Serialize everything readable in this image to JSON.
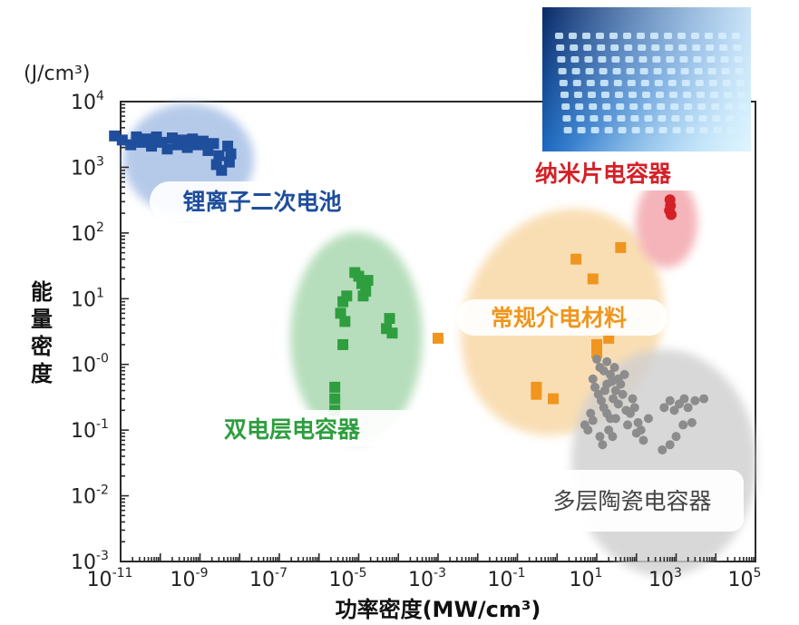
{
  "chart_data": {
    "type": "scatter",
    "title": "",
    "xlabel": "功率密度(MW/cm³)",
    "ylabel": "能量密度",
    "y_unit": "(J/cm³)",
    "x_scale": "log",
    "y_scale": "log",
    "xlim": [
      1e-11,
      100000.0
    ],
    "ylim": [
      0.001,
      10000.0
    ],
    "x_ticks": [
      {
        "base": "10",
        "exp": "-11",
        "value": 1e-11
      },
      {
        "base": "10",
        "exp": "-9",
        "value": 1e-09
      },
      {
        "base": "10",
        "exp": "-7",
        "value": 1e-07
      },
      {
        "base": "10",
        "exp": "-5",
        "value": 1e-05
      },
      {
        "base": "10",
        "exp": "-3",
        "value": 0.001
      },
      {
        "base": "10",
        "exp": "-1",
        "value": 0.1
      },
      {
        "base": "10",
        "exp": "1",
        "value": 10
      },
      {
        "base": "10",
        "exp": "3",
        "value": 1000.0
      },
      {
        "base": "10",
        "exp": "5",
        "value": 100000.0
      }
    ],
    "y_ticks": [
      {
        "base": "10",
        "exp": "4",
        "value": 10000.0
      },
      {
        "base": "10",
        "exp": "3",
        "value": 1000.0
      },
      {
        "base": "10",
        "exp": "2",
        "value": 100.0
      },
      {
        "base": "10",
        "exp": "1",
        "value": 10
      },
      {
        "base": "10",
        "exp": "-0",
        "value": 1
      },
      {
        "base": "10",
        "exp": "-1",
        "value": 0.1
      },
      {
        "base": "10",
        "exp": "-2",
        "value": 0.01
      },
      {
        "base": "10",
        "exp": "-3",
        "value": 0.001
      }
    ],
    "grid": false,
    "legend": "none",
    "series": [
      {
        "name": "锂离子二次电池",
        "color": "#1f4e9c",
        "label_color": "#1f4e9c",
        "region_color": "#a9c1e6",
        "marker": "square",
        "points": [
          [
            7e-12,
            3000
          ],
          [
            1.1e-11,
            2600
          ],
          [
            1.8e-11,
            2200
          ],
          [
            2.5e-11,
            2900
          ],
          [
            3.2e-11,
            2400
          ],
          [
            4.5e-11,
            2700
          ],
          [
            6e-11,
            2100
          ],
          [
            8e-11,
            2900
          ],
          [
            1.1e-10,
            2400
          ],
          [
            1.5e-10,
            1900
          ],
          [
            2e-10,
            2800
          ],
          [
            2.7e-10,
            2200
          ],
          [
            3.5e-10,
            2600
          ],
          [
            4.8e-10,
            2000
          ],
          [
            6.5e-10,
            2700
          ],
          [
            8.5e-10,
            2200
          ],
          [
            1.2e-09,
            2500
          ],
          [
            1.6e-09,
            1800
          ],
          [
            2.2e-09,
            2300
          ],
          [
            3e-09,
            1500
          ],
          [
            2.6e-09,
            1100
          ],
          [
            3.5e-09,
            900
          ],
          [
            5e-09,
            2100
          ],
          [
            6e-09,
            1600
          ],
          [
            5.5e-09,
            1200
          ]
        ]
      },
      {
        "name": "双电层电容器",
        "color": "#2e9e3e",
        "label_color": "#2e9e3e",
        "region_color": "#9fd3a6",
        "marker": "square",
        "points": [
          [
            8e-06,
            25
          ],
          [
            1e-05,
            22
          ],
          [
            1.2e-05,
            17
          ],
          [
            1.5e-05,
            13
          ],
          [
            1.7e-05,
            19
          ],
          [
            1.3e-05,
            11
          ],
          [
            4e-06,
            9
          ],
          [
            5e-06,
            11
          ],
          [
            3.5e-06,
            6
          ],
          [
            4.5e-06,
            4.5
          ],
          [
            4e-06,
            2
          ],
          [
            6e-05,
            5
          ],
          [
            7e-05,
            3
          ],
          [
            5e-05,
            3.5
          ],
          [
            2.5e-06,
            0.45
          ],
          [
            2.5e-06,
            0.3
          ],
          [
            2.5e-06,
            0.2
          ]
        ]
      },
      {
        "name": "纳米片电容器",
        "color": "#d42128",
        "label_color": "#d42128",
        "region_color": "#f3a7ad",
        "marker": "circle",
        "points": [
          [
            700,
            320
          ],
          [
            720,
            260
          ],
          [
            680,
            220
          ],
          [
            750,
            190
          ]
        ]
      },
      {
        "name": "常规介电材料",
        "color": "#f0961e",
        "label_color": "#f0961e",
        "region_color": "#f8d6a2",
        "marker": "square",
        "points": [
          [
            0.001,
            2.5
          ],
          [
            0.3,
            0.45
          ],
          [
            0.3,
            0.35
          ],
          [
            0.8,
            0.3
          ],
          [
            3,
            40
          ],
          [
            8,
            20
          ],
          [
            40,
            60
          ],
          [
            10,
            2
          ],
          [
            20,
            2.5
          ],
          [
            10,
            1.5
          ]
        ]
      },
      {
        "name": "多层陶瓷电容器",
        "color": "#8c8c8c",
        "label_color": "#444444",
        "region_color": "#cfcfcf",
        "marker": "circle",
        "points": [
          [
            10,
            1.2
          ],
          [
            12,
            0.9
          ],
          [
            15,
            0.8
          ],
          [
            18,
            1.1
          ],
          [
            22,
            0.7
          ],
          [
            28,
            0.9
          ],
          [
            35,
            0.6
          ],
          [
            8,
            0.6
          ],
          [
            9,
            0.45
          ],
          [
            11,
            0.35
          ],
          [
            13,
            0.28
          ],
          [
            15,
            0.22
          ],
          [
            18,
            0.18
          ],
          [
            22,
            0.15
          ],
          [
            26,
            0.3
          ],
          [
            30,
            0.4
          ],
          [
            35,
            0.25
          ],
          [
            40,
            0.5
          ],
          [
            45,
            0.35
          ],
          [
            50,
            0.7
          ],
          [
            55,
            0.2
          ],
          [
            60,
            0.12
          ],
          [
            70,
            0.18
          ],
          [
            80,
            0.3
          ],
          [
            90,
            0.22
          ],
          [
            100,
            0.09
          ],
          [
            110,
            0.13
          ],
          [
            130,
            0.1
          ],
          [
            150,
            0.07
          ],
          [
            200,
            0.15
          ],
          [
            7,
            0.18
          ],
          [
            8,
            0.14
          ],
          [
            6,
            0.1
          ],
          [
            5,
            0.12
          ],
          [
            12,
            0.08
          ],
          [
            14,
            0.06
          ],
          [
            20,
            0.1
          ],
          [
            25,
            0.08
          ],
          [
            18,
            0.5
          ],
          [
            24,
            0.55
          ],
          [
            16,
            0.4
          ],
          [
            30,
            0.15
          ],
          [
            500,
            0.22
          ],
          [
            700,
            0.28
          ],
          [
            900,
            0.2
          ],
          [
            1200,
            0.25
          ],
          [
            1600,
            0.3
          ],
          [
            2000,
            0.22
          ],
          [
            3000,
            0.28
          ],
          [
            5000,
            0.3
          ],
          [
            1500,
            0.12
          ],
          [
            2500,
            0.13
          ],
          [
            1000,
            0.08
          ],
          [
            700,
            0.06
          ],
          [
            450,
            0.05
          ]
        ]
      }
    ],
    "annotations": [
      "锂离子二次电池",
      "双电层电容器",
      "纳米片电容器",
      "常规介电材料",
      "多层陶瓷电容器"
    ]
  }
}
